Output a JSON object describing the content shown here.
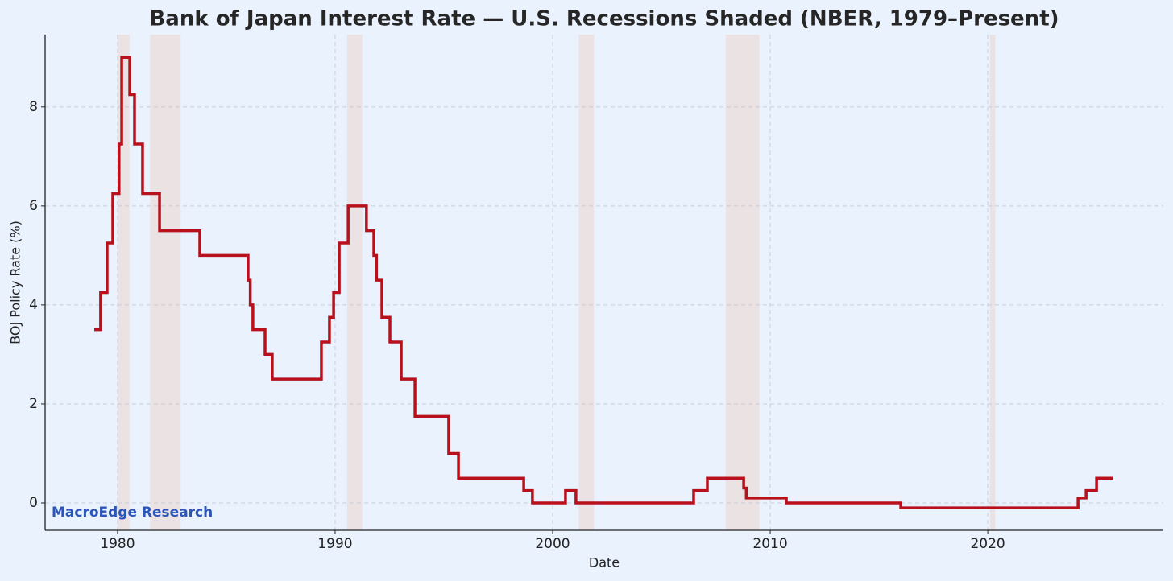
{
  "chart_data": {
    "type": "step-line",
    "title": "Bank of Japan Interest Rate — U.S. Recessions Shaded (NBER, 1979–Present)",
    "xlabel": "Date",
    "ylabel": "BOJ Policy Rate (%)",
    "annotation": "MacroEdge Research",
    "xlim": [
      1976.67,
      2028.07
    ],
    "ylim": [
      -0.553,
      9.46
    ],
    "xticks": [
      1980,
      1990,
      2000,
      2010,
      2020
    ],
    "yticks": [
      0,
      2,
      4,
      6,
      8
    ],
    "grid": true,
    "recession_color": "#ebe2e4",
    "recessions": [
      [
        1980.0,
        1980.55
      ],
      [
        1981.5,
        1982.9
      ],
      [
        1990.55,
        1991.25
      ],
      [
        2001.2,
        2001.9
      ],
      [
        2007.95,
        2009.5
      ],
      [
        2020.1,
        2020.35
      ]
    ],
    "series": [
      {
        "name": "BOJ Policy Rate",
        "color": "#b8111b",
        "x": [
          1978.93,
          1979.22,
          1979.52,
          1979.78,
          1980.07,
          1980.19,
          1980.56,
          1980.78,
          1981.15,
          1981.93,
          1983.78,
          1986.0,
          1986.1,
          1986.22,
          1986.78,
          1987.11,
          1989.37,
          1989.74,
          1989.93,
          1990.19,
          1990.6,
          1991.44,
          1991.78,
          1991.9,
          1992.15,
          1992.52,
          1993.04,
          1993.67,
          1995.22,
          1995.67,
          1998.67,
          1999.07,
          2000.59,
          2001.07,
          2006.48,
          2007.11,
          2008.78,
          2008.9,
          2010.74,
          2016.0,
          2024.15,
          2024.52,
          2025.0,
          2025.74
        ],
        "values": [
          3.5,
          4.25,
          5.25,
          6.25,
          7.25,
          9.0,
          8.25,
          7.25,
          6.25,
          5.5,
          5.0,
          4.5,
          4.0,
          3.5,
          3.0,
          2.5,
          3.25,
          3.75,
          4.25,
          5.25,
          6.0,
          5.5,
          5.0,
          4.5,
          3.75,
          3.25,
          2.5,
          1.75,
          1.0,
          0.5,
          0.25,
          0.0,
          0.25,
          0.0,
          0.25,
          0.5,
          0.3,
          0.1,
          0.0,
          -0.1,
          0.1,
          0.25,
          0.5,
          0.5
        ]
      }
    ]
  }
}
